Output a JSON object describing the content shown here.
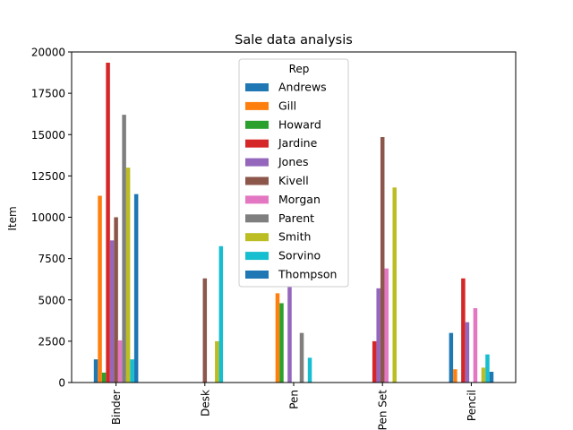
{
  "chart_data": {
    "type": "bar",
    "title": "Sale data analysis",
    "xlabel": "",
    "ylabel": "Item",
    "ylim": [
      0,
      20000
    ],
    "yticks": [
      0,
      2500,
      5000,
      7500,
      10000,
      12500,
      15000,
      17500,
      20000
    ],
    "categories": [
      "Binder",
      "Desk",
      "Pen",
      "Pen Set",
      "Pencil"
    ],
    "legend": {
      "title": "Rep",
      "placement": "top-center"
    },
    "grid": false,
    "series": [
      {
        "name": "Andrews",
        "color": "#1f77b4",
        "values": [
          1400,
          0,
          0,
          0,
          3000
        ]
      },
      {
        "name": "Gill",
        "color": "#ff7f0e",
        "values": [
          11300,
          0,
          5400,
          0,
          800
        ]
      },
      {
        "name": "Howard",
        "color": "#2ca02c",
        "values": [
          600,
          0,
          4800,
          0,
          0
        ]
      },
      {
        "name": "Jardine",
        "color": "#d62728",
        "values": [
          19350,
          0,
          0,
          2500,
          6300
        ]
      },
      {
        "name": "Jones",
        "color": "#9467bd",
        "values": [
          8600,
          0,
          5800,
          5700,
          3650
        ]
      },
      {
        "name": "Kivell",
        "color": "#8c564b",
        "values": [
          10000,
          6300,
          0,
          14850,
          0
        ]
      },
      {
        "name": "Morgan",
        "color": "#e377c2",
        "values": [
          2550,
          0,
          0,
          6900,
          4500
        ]
      },
      {
        "name": "Parent",
        "color": "#7f7f7f",
        "values": [
          16200,
          0,
          3000,
          0,
          0
        ]
      },
      {
        "name": "Smith",
        "color": "#bcbd22",
        "values": [
          13000,
          2500,
          0,
          11800,
          900
        ]
      },
      {
        "name": "Sorvino",
        "color": "#17becf",
        "values": [
          1400,
          8250,
          1500,
          0,
          1700
        ]
      },
      {
        "name": "Thompson",
        "color": "#1f77b4",
        "values": [
          11400,
          0,
          0,
          0,
          650
        ]
      }
    ]
  }
}
